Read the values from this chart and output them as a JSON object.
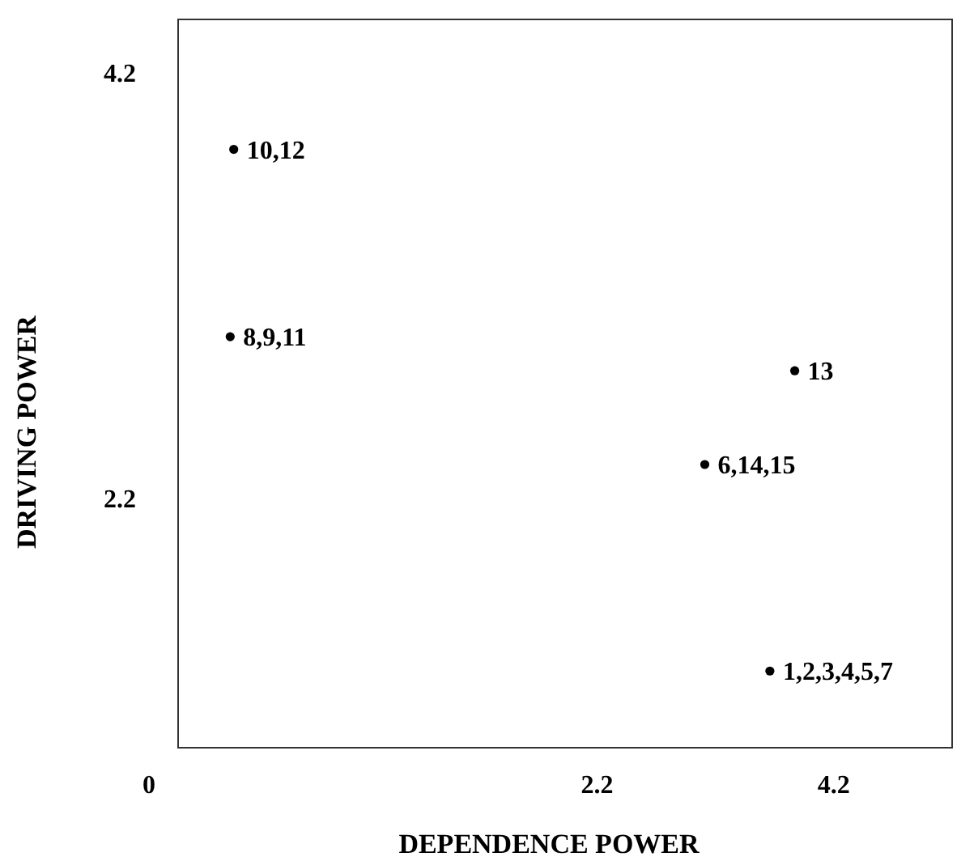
{
  "chart_data": {
    "type": "scatter",
    "xlabel": "DEPENDENCE POWER",
    "ylabel": "DRIVING POWER",
    "x": [
      -0.87,
      -0.9,
      3.87,
      3.11,
      3.66
    ],
    "series": [
      {
        "color": "#000000",
        "values": [
          3.84,
          2.96,
          2.8,
          2.36,
          1.39
        ]
      }
    ],
    "xlim": [
      -1.34,
      5.2
    ],
    "ylim": [
      1.03,
      4.45
    ],
    "xticks": [
      2.2,
      4.2
    ],
    "yticks": [
      2.2,
      4.2
    ],
    "marker": "circle",
    "annotations": [
      {
        "text": "10,12",
        "x": -0.87,
        "y": 3.84
      },
      {
        "text": "8,9,11",
        "x": -0.9,
        "y": 2.96
      },
      {
        "text": "13",
        "x": 3.87,
        "y": 2.8
      },
      {
        "text": "6,14,15",
        "x": 3.11,
        "y": 2.36
      },
      {
        "text": "1,2,3,4,5,7",
        "x": 3.66,
        "y": 1.39
      },
      "0"
    ]
  }
}
